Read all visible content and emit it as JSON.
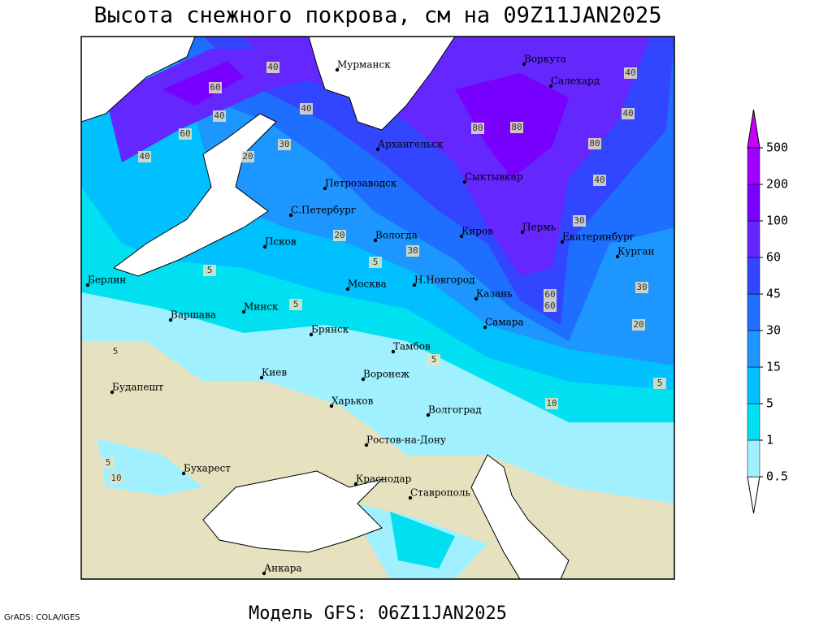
{
  "header": {
    "title": "Высота снежного покрова, см на 09Z11JAN2025"
  },
  "footer": {
    "model": "Модель GFS: 06Z11JAN2025",
    "credit": "GrADS: COLA/IGES"
  },
  "legend": {
    "levels": [
      0.5,
      1,
      5,
      15,
      30,
      45,
      60,
      100,
      200,
      500
    ],
    "colors": [
      "#ffffff",
      "#a0f0ff",
      "#00e0f0",
      "#00c0ff",
      "#1e96ff",
      "#1e6eff",
      "#3246ff",
      "#6428ff",
      "#7800ff",
      "#a000ff",
      "#c800ff"
    ]
  },
  "cities": [
    "Мурманск",
    "Воркута",
    "Салехард",
    "Архангельск",
    "Сыктывкар",
    "Петрозаводск",
    "С.Петербург",
    "Вологда",
    "Киров",
    "Пермь",
    "Екатеринбург",
    "Курган",
    "Псков",
    "Берлин",
    "Москва",
    "Н.Новгород",
    "Казань",
    "Минск",
    "Варшава",
    "Самара",
    "Брянск",
    "Тамбов",
    "Киев",
    "Воронеж",
    "Будапешт",
    "Харьков",
    "Волгоград",
    "Ростов-на-Дону",
    "Бухарест",
    "Краснодар",
    "Ставрополь",
    "Анкара"
  ],
  "contour_labels": [
    60,
    40,
    60,
    40,
    20,
    30,
    40,
    40,
    80,
    80,
    80,
    40,
    40,
    40,
    30,
    20,
    30,
    5,
    5,
    5,
    5,
    5,
    20,
    30,
    10,
    5,
    10,
    5,
    60,
    60
  ]
}
